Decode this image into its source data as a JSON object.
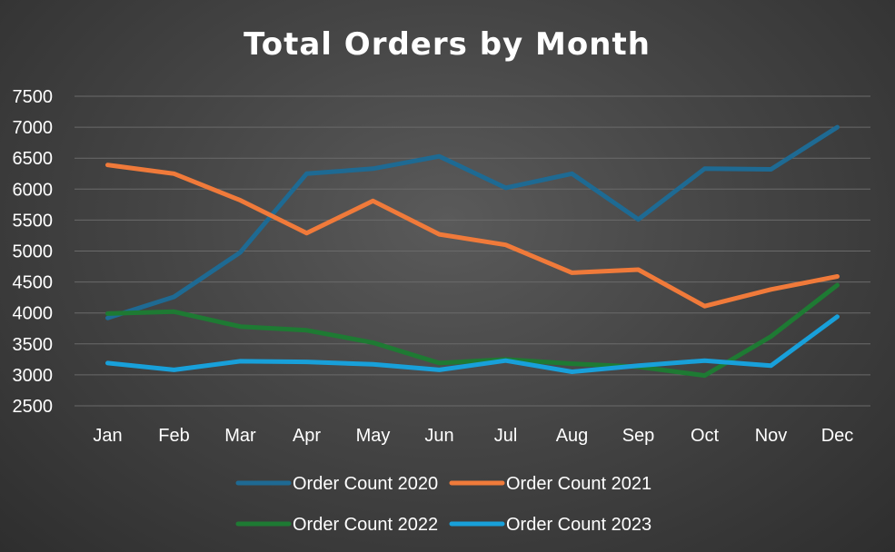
{
  "chart_data": {
    "type": "line",
    "title": "Total Orders by Month",
    "categories": [
      "Jan",
      "Feb",
      "Mar",
      "Apr",
      "May",
      "Jun",
      "Jul",
      "Aug",
      "Sep",
      "Oct",
      "Nov",
      "Dec"
    ],
    "y_ticks": [
      "2500",
      "3000",
      "3500",
      "4000",
      "4500",
      "5000",
      "5500",
      "6000",
      "6500",
      "7000",
      "7500"
    ],
    "ylim": [
      2500,
      7500
    ],
    "grid": true,
    "legend_position": "bottom",
    "series": [
      {
        "name": "Order Count 2020",
        "color": "#1e6a93",
        "values": [
          3920,
          4260,
          4980,
          6250,
          6330,
          6530,
          6020,
          6250,
          5510,
          6330,
          6320,
          7000
        ]
      },
      {
        "name": "Order Count 2021",
        "color": "#f07a3a",
        "values": [
          6390,
          6250,
          5820,
          5290,
          5810,
          5270,
          5100,
          4650,
          4700,
          4110,
          4380,
          4590
        ]
      },
      {
        "name": "Order Count 2022",
        "color": "#1e7a33",
        "values": [
          3990,
          4020,
          3780,
          3720,
          3520,
          3190,
          3250,
          3180,
          3130,
          2990,
          3620,
          4450
        ]
      },
      {
        "name": "Order Count 2023",
        "color": "#18a0da",
        "values": [
          3190,
          3080,
          3220,
          3210,
          3170,
          3080,
          3230,
          3050,
          3150,
          3230,
          3150,
          3940
        ]
      }
    ]
  }
}
